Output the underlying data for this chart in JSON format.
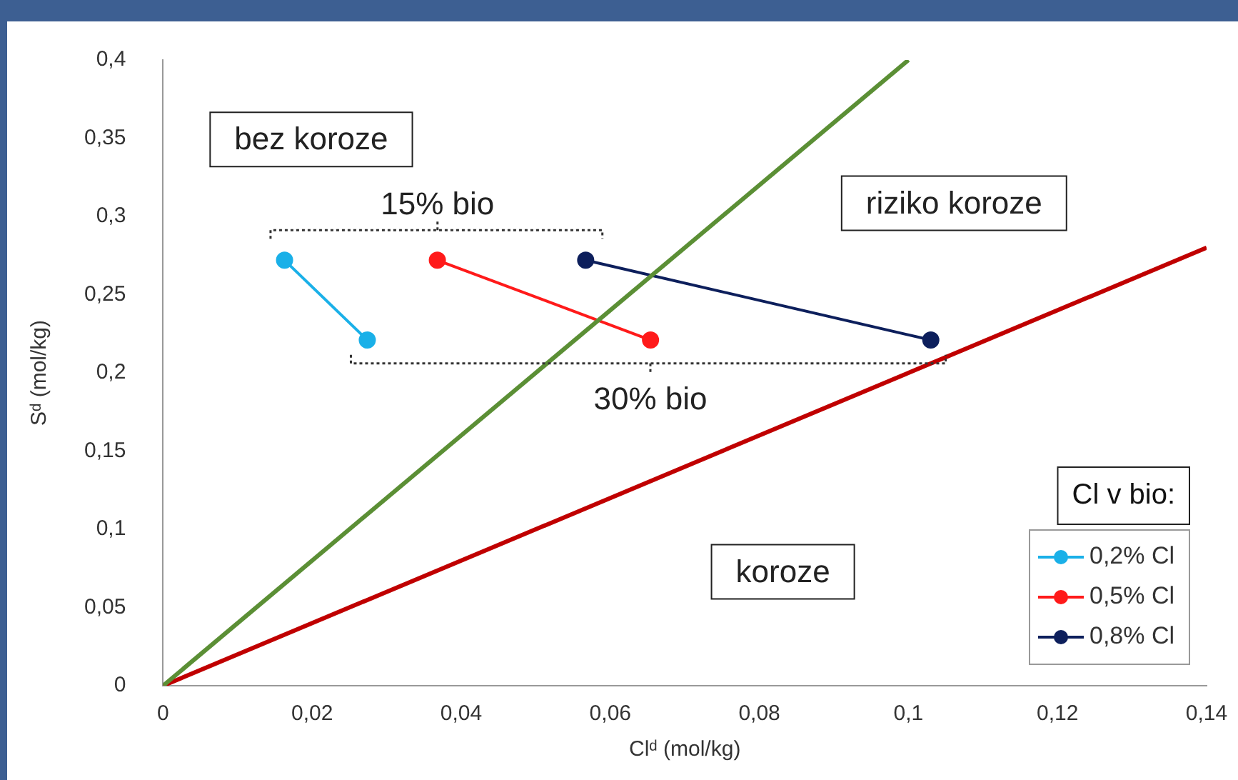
{
  "chart_data": {
    "type": "line",
    "xlabel": "Clᵈ (mol/kg)",
    "ylabel": "Sᵈ (mol/kg)",
    "legend_title": "Cl v bio:",
    "legend": "bottom right",
    "grid": false,
    "marker": "circle",
    "xlim": [
      0,
      0.14
    ],
    "ylim": [
      0,
      0.4
    ],
    "xticks": [
      0,
      {
        "value": 0.02,
        "label": "0,02"
      },
      {
        "value": 0.04,
        "label": "0,04"
      },
      {
        "value": 0.06,
        "label": "0,06"
      },
      {
        "value": 0.08,
        "label": "0,08"
      },
      {
        "value": 0.1,
        "label": "0,1"
      },
      {
        "value": 0.12,
        "label": "0,12"
      },
      {
        "value": 0.14,
        "label": "0,14"
      }
    ],
    "yticks": [
      0,
      {
        "value": 0.05,
        "label": "0,05"
      },
      {
        "value": 0.1,
        "label": "0,1"
      },
      {
        "value": 0.15,
        "label": "0,15"
      },
      {
        "value": 0.2,
        "label": "0,2"
      },
      {
        "value": 0.25,
        "label": "0,25"
      },
      {
        "value": 0.3,
        "label": "0,3"
      },
      {
        "value": 0.35,
        "label": "0,35"
      },
      {
        "value": 0.4,
        "label": "0,4"
      }
    ],
    "series": [
      {
        "type": "line",
        "marker": "none",
        "color": "#5b8f35",
        "x": [
          0,
          0.1
        ],
        "values": [
          0,
          0.4
        ]
      },
      {
        "type": "line",
        "marker": "none",
        "color": "#c00000",
        "x": [
          0,
          0.14
        ],
        "values": [
          0,
          0.28
        ]
      },
      {
        "name": "0,2% Cl",
        "color": "#1ab0e8",
        "x": [
          0.0163,
          0.0274
        ],
        "values": [
          0.272,
          0.221
        ]
      },
      {
        "name": "0,5% Cl",
        "color": "#ff1a1a",
        "x": [
          0.0368,
          0.0654
        ],
        "values": [
          0.272,
          0.221
        ]
      },
      {
        "name": "0,8% Cl",
        "color": "#0d1f5c",
        "x": [
          0.0567,
          0.103
        ],
        "values": [
          0.272,
          0.221
        ]
      }
    ],
    "annotations": [
      "bez koroze",
      "riziko koroze",
      "koroze",
      "15% bio",
      "30% bio"
    ]
  }
}
